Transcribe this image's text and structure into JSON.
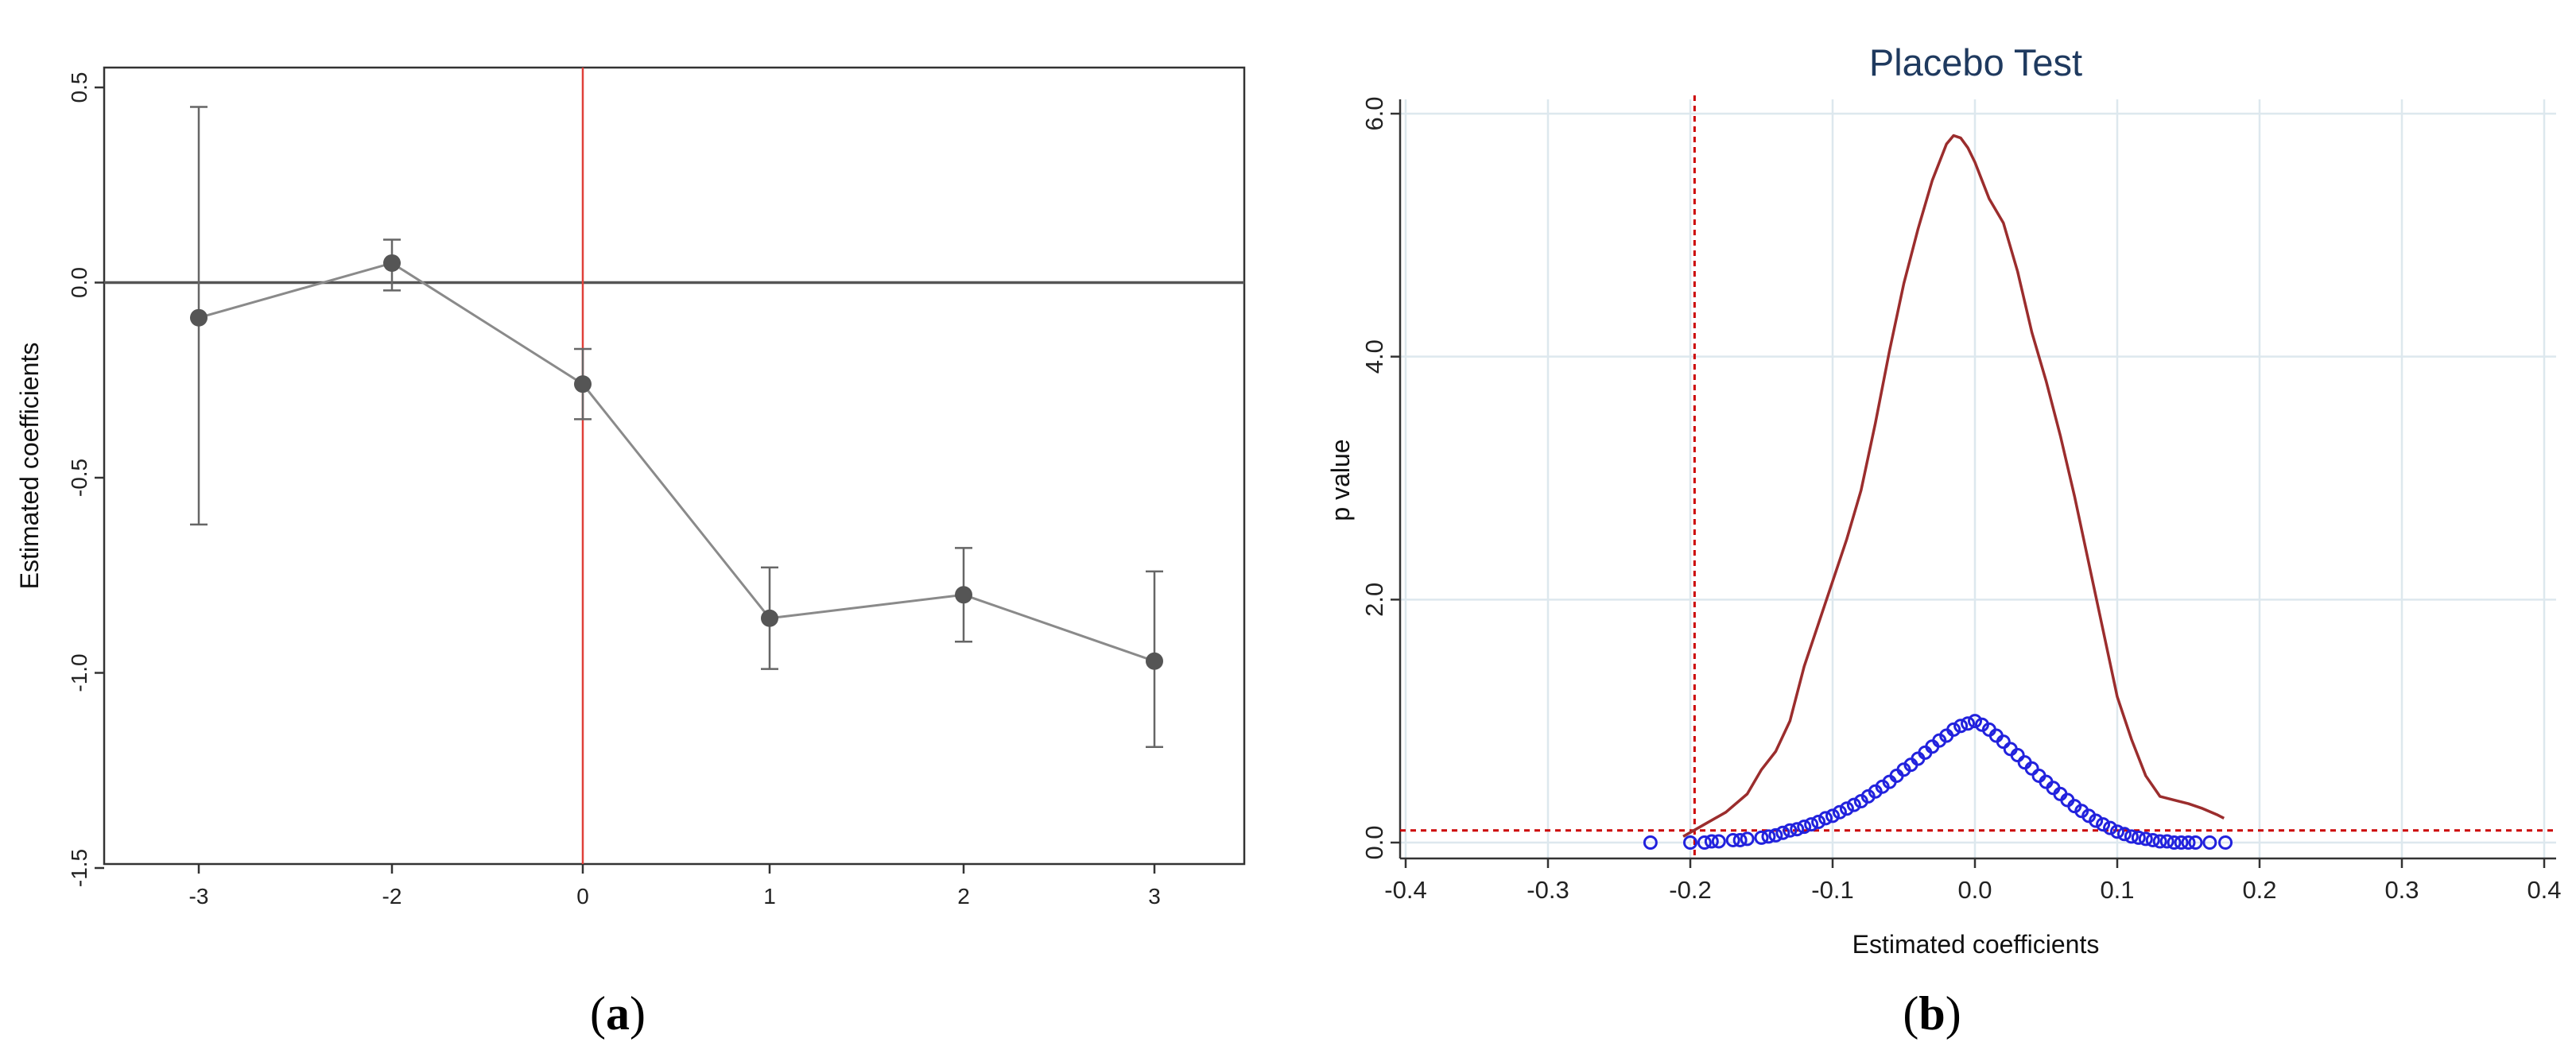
{
  "chart_data": [
    {
      "id": "a",
      "type": "line",
      "panel_label": "a",
      "title": "",
      "xlabel": "",
      "ylabel": "Estimated coefficients",
      "categories": [
        "-3",
        "-2",
        "0",
        "1",
        "2",
        "3"
      ],
      "x": [
        -3,
        -2,
        0,
        1,
        2,
        3
      ],
      "series": [
        {
          "values": [
            -0.09,
            0.05,
            -0.26,
            -0.86,
            -0.8,
            -0.97
          ],
          "ci_low": [
            -0.62,
            -0.02,
            -0.35,
            -0.99,
            -0.92,
            -1.19
          ],
          "ci_high": [
            0.45,
            0.11,
            -0.17,
            -0.73,
            -0.68,
            -0.74
          ]
        }
      ],
      "ylim": [
        -1.5,
        0.5
      ],
      "yticks": [
        "0.5",
        "0.0",
        "-0.5",
        "-1.0",
        "-1.5"
      ],
      "ytick_values": [
        0.5,
        0.0,
        -0.5,
        -1.0,
        -1.5
      ],
      "reference_lines": {
        "horizontal_y": 0,
        "vertical_x": 0
      },
      "grid": false,
      "colors": {
        "line": "#8a8a8a",
        "marker": "#555555",
        "error_bar": "#666666",
        "zero_line": "#555555",
        "event_line": "#e0403a"
      }
    },
    {
      "id": "b",
      "type": "line",
      "panel_label": "b",
      "title": "Placebo Test",
      "xlabel": "Estimated coefficients",
      "ylabel": "p value",
      "xlim": [
        -0.4,
        0.4
      ],
      "ylim": [
        0,
        6
      ],
      "xticks": [
        "-0.4",
        "-0.3",
        "-0.2",
        "-0.1",
        "0.0",
        "0.1",
        "0.2",
        "0.3",
        "0.4"
      ],
      "xtick_values": [
        -0.4,
        -0.3,
        -0.2,
        -0.1,
        0.0,
        0.1,
        0.2,
        0.3,
        0.4
      ],
      "yticks": [
        "0.0",
        "2.0",
        "4.0",
        "6.0"
      ],
      "ytick_values": [
        0,
        2,
        4,
        6
      ],
      "grid": true,
      "density_curve": {
        "x": [
          -0.205,
          -0.19,
          -0.175,
          -0.16,
          -0.15,
          -0.14,
          -0.13,
          -0.12,
          -0.11,
          -0.1,
          -0.09,
          -0.08,
          -0.07,
          -0.06,
          -0.05,
          -0.04,
          -0.03,
          -0.02,
          -0.015,
          -0.01,
          -0.005,
          0.0,
          0.005,
          0.01,
          0.02,
          0.03,
          0.04,
          0.05,
          0.06,
          0.07,
          0.08,
          0.09,
          0.1,
          0.11,
          0.12,
          0.13,
          0.14,
          0.15,
          0.16,
          0.17,
          0.175
        ],
        "y": [
          0.05,
          0.15,
          0.25,
          0.4,
          0.6,
          0.75,
          1.0,
          1.45,
          1.8,
          2.15,
          2.5,
          2.9,
          3.45,
          4.05,
          4.6,
          5.05,
          5.45,
          5.75,
          5.82,
          5.8,
          5.72,
          5.6,
          5.45,
          5.3,
          5.1,
          4.7,
          4.2,
          3.8,
          3.35,
          2.85,
          2.3,
          1.75,
          1.2,
          0.85,
          0.55,
          0.38,
          0.35,
          0.32,
          0.28,
          0.23,
          0.2
        ]
      },
      "p_value_points": {
        "x": [
          -0.228,
          -0.2,
          -0.19,
          -0.185,
          -0.18,
          -0.17,
          -0.165,
          -0.16,
          -0.15,
          -0.145,
          -0.14,
          -0.135,
          -0.13,
          -0.125,
          -0.12,
          -0.115,
          -0.11,
          -0.105,
          -0.1,
          -0.095,
          -0.09,
          -0.085,
          -0.08,
          -0.075,
          -0.07,
          -0.065,
          -0.06,
          -0.055,
          -0.05,
          -0.045,
          -0.04,
          -0.035,
          -0.03,
          -0.025,
          -0.02,
          -0.015,
          -0.01,
          -0.005,
          0.0,
          0.005,
          0.01,
          0.015,
          0.02,
          0.025,
          0.03,
          0.035,
          0.04,
          0.045,
          0.05,
          0.055,
          0.06,
          0.065,
          0.07,
          0.075,
          0.08,
          0.085,
          0.09,
          0.095,
          0.1,
          0.105,
          0.11,
          0.115,
          0.12,
          0.125,
          0.13,
          0.135,
          0.14,
          0.145,
          0.15,
          0.155,
          0.165,
          0.176
        ],
        "y": [
          0.0,
          0.0,
          0.0,
          0.01,
          0.01,
          0.02,
          0.02,
          0.03,
          0.04,
          0.05,
          0.06,
          0.08,
          0.1,
          0.11,
          0.13,
          0.15,
          0.17,
          0.2,
          0.22,
          0.25,
          0.28,
          0.31,
          0.34,
          0.38,
          0.42,
          0.46,
          0.5,
          0.55,
          0.6,
          0.64,
          0.69,
          0.74,
          0.79,
          0.84,
          0.88,
          0.93,
          0.96,
          0.98,
          1.0,
          0.97,
          0.93,
          0.88,
          0.83,
          0.77,
          0.72,
          0.66,
          0.61,
          0.55,
          0.5,
          0.45,
          0.4,
          0.35,
          0.3,
          0.26,
          0.22,
          0.18,
          0.15,
          0.12,
          0.09,
          0.07,
          0.05,
          0.04,
          0.03,
          0.02,
          0.01,
          0.01,
          0.0,
          0.0,
          0.0,
          0.0,
          0.0,
          0.0
        ]
      },
      "reference_lines": {
        "vertical_x": -0.197,
        "horizontal_y": 0.1
      },
      "colors": {
        "density": "#9b2d2d",
        "points": "#2222dd",
        "reference": "#cc0000",
        "grid": "#dde8ee",
        "title": "#1f3a5f"
      }
    }
  ]
}
